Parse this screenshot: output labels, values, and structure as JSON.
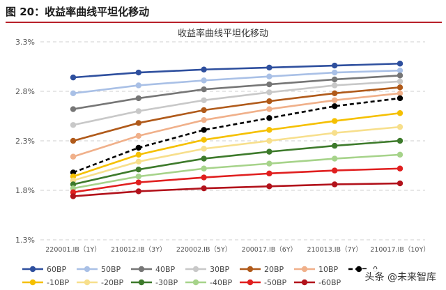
{
  "figure": {
    "title": "图 20：收益率曲线平坦化移动"
  },
  "watermark": "头条 @未来智库",
  "chart_data": {
    "type": "line",
    "title": "收益率曲线平坦化移动",
    "xlabel": "",
    "ylabel": "",
    "categories": [
      "220001.IB（1Y）",
      "210012.IB（3Y）",
      "220002.IB（5Y）",
      "200017.IB（6Y）",
      "210013.IB（7Y）",
      "210017.IB（10Y）"
    ],
    "y_ticks": [
      "1.3%",
      "1.8%",
      "2.3%",
      "2.8%",
      "3.3%"
    ],
    "ylim": [
      1.3,
      3.3
    ],
    "grid": "horizontal-dashed",
    "legend_position": "bottom",
    "series": [
      {
        "name": "60BP",
        "color": "#2e4f9e",
        "dashed": false,
        "values": [
          2.94,
          2.99,
          3.02,
          3.04,
          3.06,
          3.08
        ]
      },
      {
        "name": "50BP",
        "color": "#a9c0e6",
        "dashed": false,
        "values": [
          2.78,
          2.86,
          2.91,
          2.95,
          2.99,
          3.01
        ]
      },
      {
        "name": "40BP",
        "color": "#767676",
        "dashed": false,
        "values": [
          2.62,
          2.73,
          2.82,
          2.87,
          2.92,
          2.96
        ]
      },
      {
        "name": "30BP",
        "color": "#c8c8c8",
        "dashed": false,
        "values": [
          2.46,
          2.6,
          2.71,
          2.79,
          2.86,
          2.9
        ]
      },
      {
        "name": "20BP",
        "color": "#b05a1a",
        "dashed": false,
        "values": [
          2.3,
          2.48,
          2.61,
          2.7,
          2.78,
          2.84
        ]
      },
      {
        "name": "10BP",
        "color": "#f0b08a",
        "dashed": false,
        "values": [
          2.14,
          2.35,
          2.51,
          2.62,
          2.71,
          2.78
        ]
      },
      {
        "name": "0",
        "color": "#000000",
        "dashed": true,
        "values": [
          1.98,
          2.23,
          2.41,
          2.53,
          2.65,
          2.73
        ]
      },
      {
        "name": "-10BP",
        "color": "#f5c000",
        "dashed": false,
        "values": [
          1.94,
          2.16,
          2.31,
          2.41,
          2.5,
          2.58
        ]
      },
      {
        "name": "-20BP",
        "color": "#f7df8c",
        "dashed": false,
        "values": [
          1.9,
          2.09,
          2.22,
          2.3,
          2.38,
          2.44
        ]
      },
      {
        "name": "-30BP",
        "color": "#3d7a2b",
        "dashed": false,
        "values": [
          1.86,
          2.01,
          2.12,
          2.19,
          2.25,
          2.3
        ]
      },
      {
        "name": "-40BP",
        "color": "#a6d38a",
        "dashed": false,
        "values": [
          1.82,
          1.94,
          2.02,
          2.07,
          2.12,
          2.16
        ]
      },
      {
        "name": "-50BP",
        "color": "#e01f1f",
        "dashed": false,
        "values": [
          1.78,
          1.88,
          1.93,
          1.97,
          2.0,
          2.02
        ]
      },
      {
        "name": "-60BP",
        "color": "#b2121b",
        "dashed": false,
        "values": [
          1.74,
          1.79,
          1.82,
          1.84,
          1.86,
          1.87
        ]
      }
    ]
  }
}
